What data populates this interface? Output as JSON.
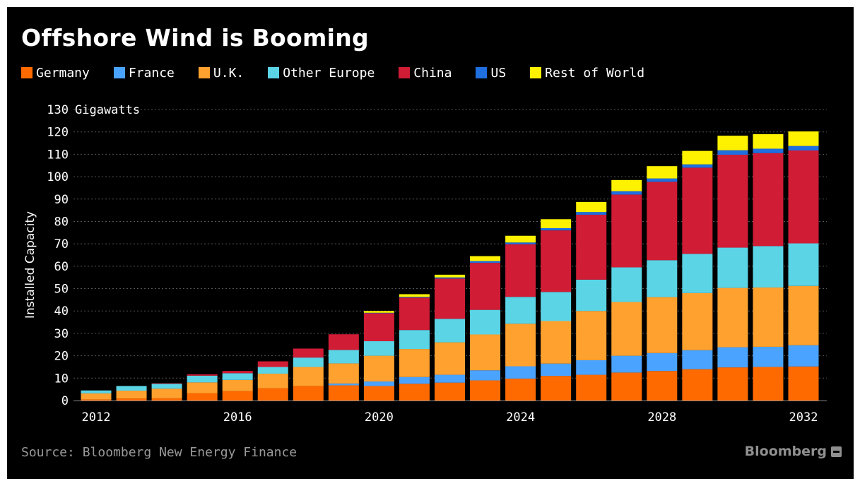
{
  "header": {
    "title": "Offshore Wind is Booming"
  },
  "footer": {
    "source": "Source: Bloomberg New Energy Finance",
    "brand": "Bloomberg"
  },
  "legend": [
    {
      "label": "Germany",
      "color": "#ff6a00"
    },
    {
      "label": "France",
      "color": "#4aa3ff"
    },
    {
      "label": "U.K.",
      "color": "#ffa12e"
    },
    {
      "label": "Other Europe",
      "color": "#5bd4e6"
    },
    {
      "label": "China",
      "color": "#d01c35"
    },
    {
      "label": "US",
      "color": "#1f6fe0"
    },
    {
      "label": "Rest of World",
      "color": "#fff200"
    }
  ],
  "chart_data": {
    "type": "bar",
    "stacked": true,
    "title": "Offshore Wind is Booming",
    "ylabel": "Installed Capacity",
    "yunit": "Gigawatts",
    "ylim": [
      0,
      130
    ],
    "yticks": [
      0,
      10,
      20,
      30,
      40,
      50,
      60,
      70,
      80,
      90,
      100,
      110,
      120,
      130
    ],
    "x": [
      2012,
      2013,
      2014,
      2015,
      2016,
      2017,
      2018,
      2019,
      2020,
      2021,
      2022,
      2023,
      2024,
      2025,
      2026,
      2027,
      2028,
      2029,
      2030,
      2031,
      2032
    ],
    "xtick_labels": [
      "2012",
      "2016",
      "2020",
      "2024",
      "2028",
      "2032"
    ],
    "grid": true,
    "legend_position": "top",
    "series": [
      {
        "name": "Germany",
        "color": "#ff6a00",
        "values": [
          0.5,
          0.9,
          1.0,
          3.3,
          4.2,
          5.5,
          6.5,
          6.8,
          6.5,
          7.5,
          8.0,
          9.0,
          9.8,
          11.0,
          11.5,
          12.5,
          13.2,
          14.0,
          14.8,
          15.0,
          15.2
        ]
      },
      {
        "name": "France",
        "color": "#4aa3ff",
        "values": [
          0,
          0,
          0,
          0,
          0,
          0,
          0,
          0.8,
          2.0,
          3.0,
          3.5,
          4.5,
          5.5,
          5.5,
          6.5,
          7.5,
          8.0,
          8.5,
          9.0,
          9.0,
          9.5
        ]
      },
      {
        "name": "U.K.",
        "color": "#ffa12e",
        "values": [
          2.7,
          3.5,
          4.3,
          4.8,
          5.0,
          6.5,
          8.5,
          9.0,
          11.5,
          12.5,
          14.5,
          16.0,
          19.0,
          19.0,
          22.0,
          24.0,
          25.0,
          25.5,
          26.5,
          26.5,
          26.5
        ]
      },
      {
        "name": "Other Europe",
        "color": "#5bd4e6",
        "values": [
          1.3,
          2.1,
          2.2,
          3.0,
          3.0,
          3.0,
          4.2,
          6.0,
          6.5,
          8.5,
          10.5,
          11.0,
          12.0,
          13.0,
          14.0,
          15.5,
          16.5,
          17.5,
          18.0,
          18.5,
          19.0
        ]
      },
      {
        "name": "China",
        "color": "#d01c35",
        "values": [
          0,
          0,
          0.2,
          0.6,
          1.0,
          2.5,
          4.0,
          7.0,
          12.5,
          14.5,
          18.0,
          21.0,
          23.5,
          27.5,
          29.0,
          32.5,
          35.0,
          38.5,
          41.5,
          41.5,
          41.5
        ]
      },
      {
        "name": "US",
        "color": "#1f6fe0",
        "values": [
          0,
          0,
          0,
          0,
          0,
          0,
          0,
          0,
          0.2,
          0.3,
          0.5,
          0.8,
          0.8,
          1.0,
          1.2,
          1.5,
          1.5,
          1.5,
          2.0,
          2.0,
          2.0
        ]
      },
      {
        "name": "Rest of World",
        "color": "#fff200",
        "values": [
          0,
          0,
          0,
          0,
          0,
          0,
          0,
          0,
          0.8,
          1.2,
          1.2,
          2.2,
          3.0,
          4.0,
          4.5,
          5.0,
          5.5,
          6.0,
          6.5,
          6.5,
          6.5
        ]
      }
    ]
  }
}
